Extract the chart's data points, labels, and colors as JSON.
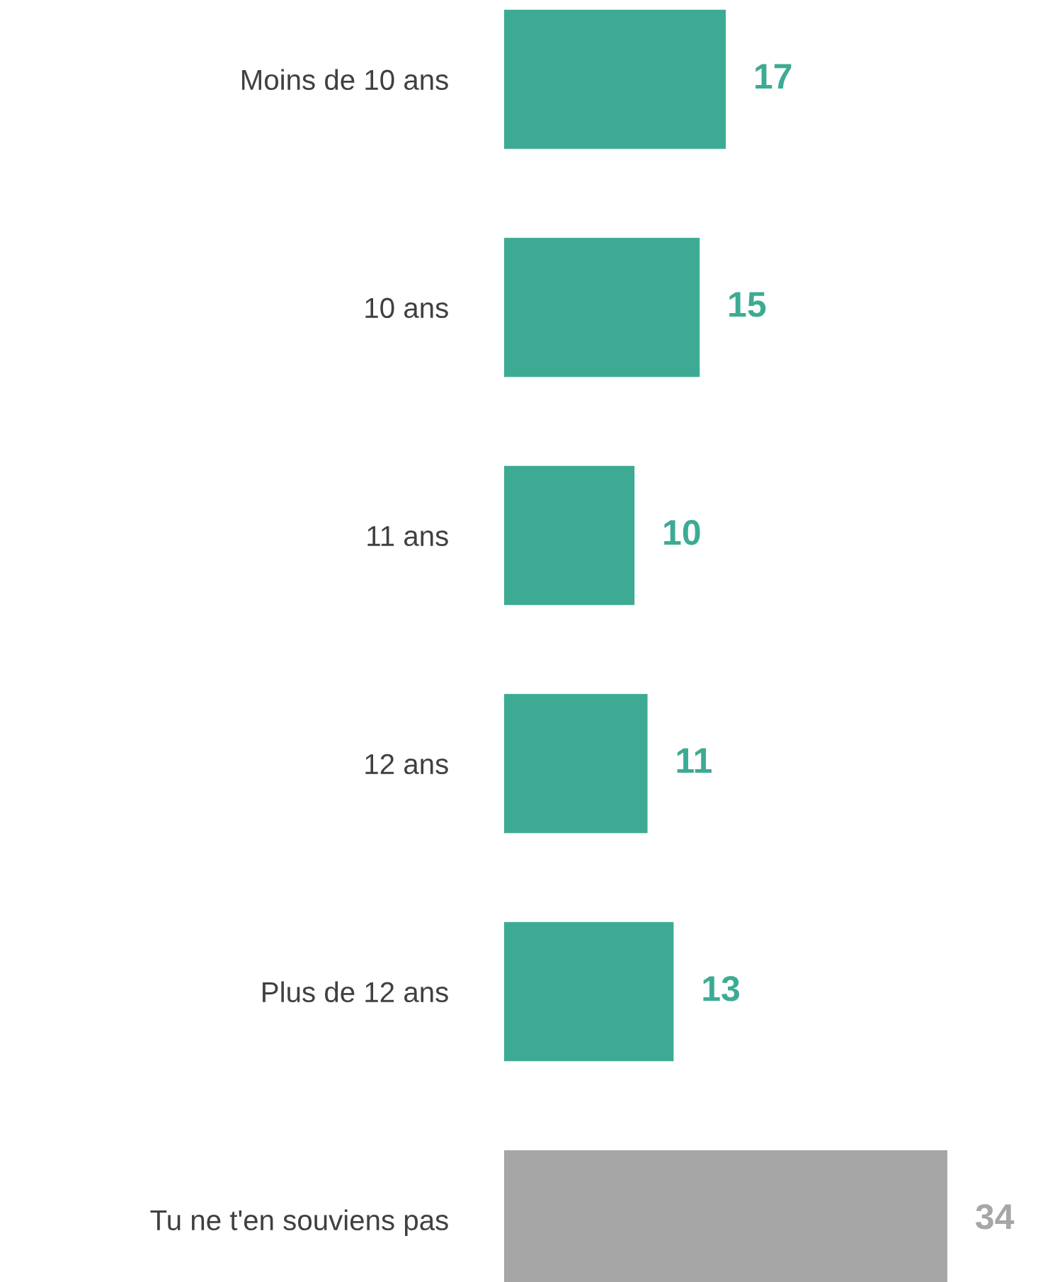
{
  "chart_data": {
    "type": "bar",
    "orientation": "horizontal",
    "categories": [
      "Moins de 10 ans",
      "10 ans",
      "11 ans",
      "12 ans",
      "Plus de 12 ans",
      "Tu ne t'en souviens pas"
    ],
    "values": [
      17,
      15,
      10,
      11,
      13,
      34
    ],
    "colors": [
      "#3dab93",
      "#3dab93",
      "#3dab93",
      "#3dab93",
      "#3dab93",
      "#a6a6a6"
    ],
    "data_labels": true,
    "grid": false,
    "legend": false,
    "tick_labels": "y"
  }
}
